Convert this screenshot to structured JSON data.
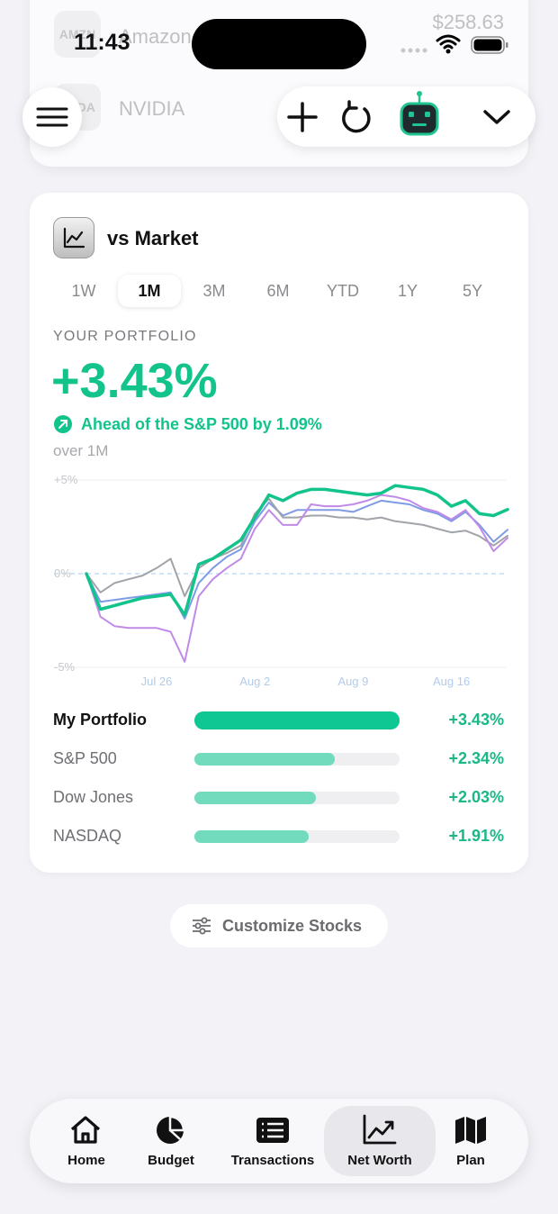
{
  "status_bar": {
    "time": "11:43"
  },
  "background_list": [
    {
      "ticker": "AMZN",
      "name": "Amazon",
      "price": "$258.63"
    },
    {
      "ticker": "NVDA",
      "name": "NVIDIA"
    }
  ],
  "card": {
    "title": "vs Market"
  },
  "tabs": {
    "items": [
      "1W",
      "1M",
      "3M",
      "6M",
      "YTD",
      "1Y",
      "5Y"
    ],
    "selected": 1
  },
  "summary": {
    "label": "YOUR PORTFOLIO",
    "comparison": "Ahead of the S&P 500 by 1.09%",
    "period": "over 1M"
  },
  "chart_data": {
    "type": "line",
    "categories": [
      null,
      null,
      null,
      null,
      null,
      "Jul 26",
      null,
      null,
      null,
      null,
      null,
      null,
      "Aug 2",
      null,
      null,
      null,
      null,
      null,
      null,
      "Aug 9",
      null,
      null,
      null,
      null,
      null,
      null,
      "Aug 16",
      null,
      null,
      null,
      null
    ],
    "ylim": [
      -5,
      5
    ],
    "yticks": [
      {
        "value": 5,
        "label": "+5%"
      },
      {
        "value": 0,
        "label": "0%"
      },
      {
        "value": -5,
        "label": "-5%"
      }
    ],
    "grid": true,
    "series": [
      {
        "name": "My Portfolio",
        "color": "#12c48b",
        "bar_color": "#0fc792",
        "change": 3.43,
        "change_label": "+3.43%",
        "values": [
          0,
          -1.9,
          -1.7,
          -1.5,
          -1.3,
          -1.2,
          -1.1,
          -2.2,
          0.5,
          0.8,
          1.3,
          1.8,
          3.0,
          4.2,
          3.9,
          4.3,
          4.5,
          4.5,
          4.4,
          4.3,
          4.2,
          4.3,
          4.7,
          4.6,
          4.5,
          4.2,
          3.6,
          3.9,
          3.2,
          3.1,
          3.43
        ]
      },
      {
        "name": "S&P 500",
        "color": "#7f9be6",
        "bar_color": "#72dbbe",
        "change": 2.34,
        "change_label": "+2.34%",
        "values": [
          0,
          -1.5,
          -1.4,
          -1.3,
          -1.2,
          -1.1,
          -1.0,
          -2.4,
          -0.5,
          0.3,
          0.9,
          1.3,
          2.8,
          3.8,
          3.1,
          3.4,
          3.4,
          3.4,
          3.4,
          3.3,
          3.6,
          3.9,
          3.8,
          3.7,
          3.4,
          3.2,
          2.8,
          3.3,
          2.6,
          1.7,
          2.34
        ]
      },
      {
        "name": "Dow Jones",
        "color": "#a0a3a8",
        "bar_color": "#72dbbe",
        "change": 2.03,
        "change_label": "+2.03%",
        "values": [
          0,
          -1.0,
          -0.5,
          -0.3,
          -0.1,
          0.3,
          0.8,
          -1.2,
          0.3,
          0.8,
          1.1,
          1.5,
          3.2,
          4.0,
          3.0,
          3.0,
          3.1,
          3.1,
          3.0,
          3.0,
          2.9,
          3.0,
          2.8,
          2.7,
          2.6,
          2.4,
          2.2,
          2.3,
          2.0,
          1.5,
          2.03
        ]
      },
      {
        "name": "NASDAQ",
        "color": "#c08be8",
        "bar_color": "#72dbbe",
        "change": 1.91,
        "change_label": "+1.91%",
        "values": [
          0,
          -2.3,
          -2.8,
          -2.9,
          -2.9,
          -2.9,
          -3.1,
          -4.7,
          -1.2,
          -0.3,
          0.3,
          0.8,
          2.4,
          3.4,
          2.6,
          2.6,
          3.7,
          3.6,
          3.6,
          3.7,
          3.9,
          4.2,
          4.1,
          3.9,
          3.5,
          3.3,
          2.9,
          3.4,
          2.5,
          1.2,
          1.91
        ]
      }
    ]
  },
  "customize_button": "Customize Stocks",
  "nav": {
    "items": [
      "Home",
      "Budget",
      "Transactions",
      "Net Worth",
      "Plan"
    ],
    "active": 3
  }
}
